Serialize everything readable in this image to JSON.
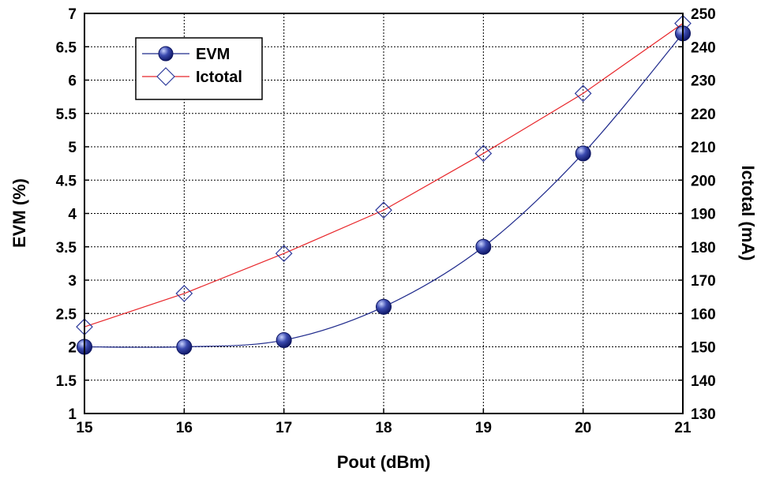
{
  "chart_data": {
    "type": "line",
    "title": "",
    "xlabel": "Pout (dBm)",
    "ylabel_left": "EVM (%)",
    "ylabel_right": "Ictotal (mA)",
    "x": [
      15,
      16,
      17,
      18,
      19,
      20,
      21
    ],
    "xlim": [
      15,
      21
    ],
    "xticks": [
      "15",
      "16",
      "17",
      "18",
      "19",
      "20",
      "21"
    ],
    "ylim_left": [
      1,
      7
    ],
    "yticks_left": [
      "1",
      "1.5",
      "2",
      "2.5",
      "3",
      "3.5",
      "4",
      "4.5",
      "5",
      "5.5",
      "6",
      "6.5",
      "7"
    ],
    "ylim_right": [
      130,
      250
    ],
    "yticks_right": [
      "130",
      "140",
      "150",
      "160",
      "170",
      "180",
      "190",
      "200",
      "210",
      "220",
      "230",
      "240",
      "250"
    ],
    "grid": true,
    "legend_position": "top-left",
    "series": [
      {
        "name": "EVM",
        "axis": "left",
        "color": "#1f2a8c",
        "marker": "circle",
        "values": [
          2.0,
          2.0,
          2.1,
          2.6,
          3.5,
          4.9,
          6.7
        ]
      },
      {
        "name": "Ictotal",
        "axis": "right",
        "color": "#e8262a",
        "marker_color": "#2d3a9c",
        "marker": "diamond",
        "values": [
          156,
          166,
          178,
          191,
          208,
          226,
          247
        ]
      }
    ]
  }
}
